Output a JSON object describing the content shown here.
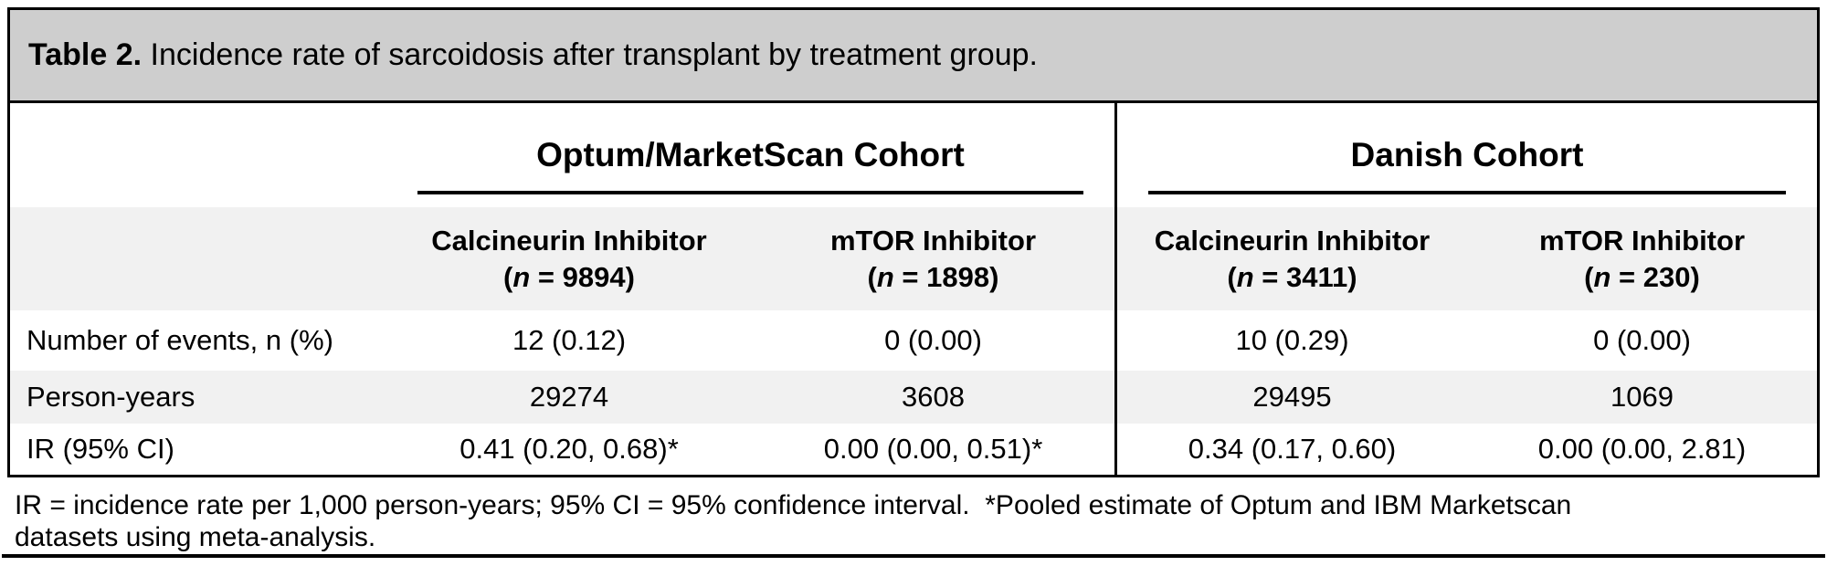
{
  "title": {
    "number": "Table 2.",
    "caption": " Incidence rate of sarcoidosis after transplant by treatment group."
  },
  "cohorts": [
    {
      "name": "Optum/MarketScan Cohort",
      "columns": [
        {
          "drug": "Calcineurin Inhibitor",
          "n_pre": "(",
          "n_italic": "n",
          "n_post": " = 9894)"
        },
        {
          "drug": "mTOR Inhibitor",
          "n_pre": "(",
          "n_italic": "n",
          "n_post": " = 1898)"
        }
      ]
    },
    {
      "name": "Danish Cohort",
      "columns": [
        {
          "drug": "Calcineurin Inhibitor",
          "n_pre": "(",
          "n_italic": "n",
          "n_post": " = 3411)"
        },
        {
          "drug": "mTOR Inhibitor",
          "n_pre": "(",
          "n_italic": "n",
          "n_post": " = 230)"
        }
      ]
    }
  ],
  "rows": [
    {
      "label": "Number of events, n (%)",
      "values": [
        "12 (0.12)",
        "0 (0.00)",
        "10 (0.29)",
        "0 (0.00)"
      ]
    },
    {
      "label": "Person-years",
      "values": [
        "29274",
        "3608",
        "29495",
        "1069"
      ]
    },
    {
      "label": "IR (95% CI)",
      "values": [
        "0.41 (0.20, 0.68)*",
        "0.00 (0.00, 0.51)*",
        "0.34 (0.17, 0.60)",
        "0.00 (0.00, 2.81)"
      ]
    }
  ],
  "footnote": {
    "line1": "IR = incidence rate per 1,000 person-years; 95% CI = 95% confidence interval.  *Pooled estimate of Optum and IBM Marketscan",
    "line2": "datasets using meta-analysis."
  },
  "colors": {
    "title_bar_bg": "#cecece",
    "shaded_row_bg": "#f1f1f1",
    "border": "#000000"
  }
}
